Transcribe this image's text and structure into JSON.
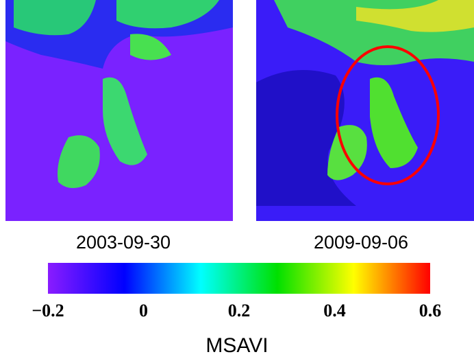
{
  "panels": [
    {
      "date": "2003-09-30"
    },
    {
      "date": "2009-09-06"
    }
  ],
  "colorbar": {
    "label": "MSAVI",
    "lim": [
      -0.2,
      0.6
    ],
    "ticks": [
      {
        "value": -0.2,
        "label": "−0.2"
      },
      0,
      0.2,
      0.4,
      0.6
    ],
    "colors": [
      "#8a1cff",
      "#0000ff",
      "#00ffff",
      "#00e000",
      "#ffff00",
      "#ff0000"
    ]
  }
}
